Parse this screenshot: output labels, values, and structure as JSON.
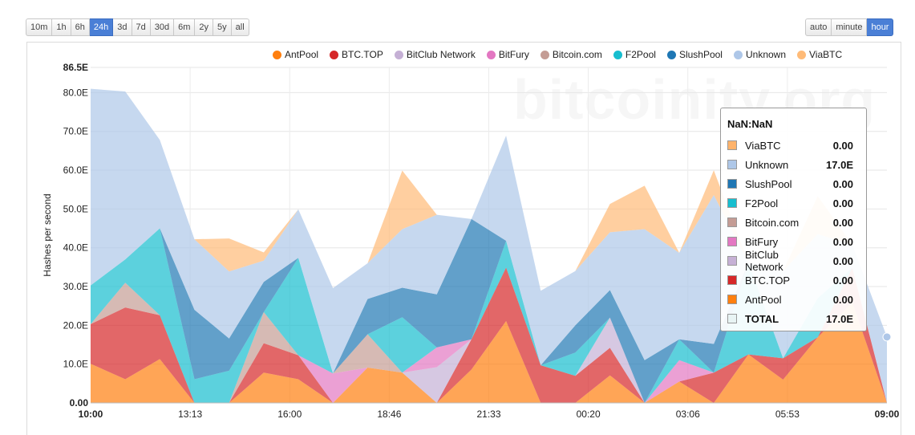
{
  "range_buttons": [
    {
      "label": "10m"
    },
    {
      "label": "1h"
    },
    {
      "label": "6h"
    },
    {
      "label": "24h"
    },
    {
      "label": "3d"
    },
    {
      "label": "7d"
    },
    {
      "label": "30d"
    },
    {
      "label": "6m"
    },
    {
      "label": "2y"
    },
    {
      "label": "5y"
    },
    {
      "label": "all"
    }
  ],
  "active_range": "24h",
  "interval_buttons": [
    {
      "label": "auto"
    },
    {
      "label": "minute"
    },
    {
      "label": "hour"
    }
  ],
  "active_interval": "hour",
  "watermark": "bitcoinity.org",
  "tooltip": {
    "title": "NaN:NaN",
    "rows": [
      {
        "name": "ViaBTC",
        "value": "0.00",
        "color": "#ffb36b"
      },
      {
        "name": "Unknown",
        "value": "17.0E",
        "color": "#aec7e8"
      },
      {
        "name": "SlushPool",
        "value": "0.00",
        "color": "#1f77b4"
      },
      {
        "name": "F2Pool",
        "value": "0.00",
        "color": "#17becf"
      },
      {
        "name": "Bitcoin.com",
        "value": "0.00",
        "color": "#c49c94"
      },
      {
        "name": "BitFury",
        "value": "0.00",
        "color": "#e377c2"
      },
      {
        "name": "BitClub Network",
        "value": "0.00",
        "color": "#c5b0d5"
      },
      {
        "name": "BTC.TOP",
        "value": "0.00",
        "color": "#d62728"
      },
      {
        "name": "AntPool",
        "value": "0.00",
        "color": "#ff7f0e"
      },
      {
        "name": "TOTAL",
        "value": "17.0E",
        "color": "#e8f4f4"
      }
    ]
  },
  "chart_data": {
    "type": "area",
    "stacked": true,
    "ylabel": "Hashes per second",
    "ylim": [
      0,
      86.5
    ],
    "ytick_labels": [
      "0.00",
      "10.0E",
      "20.0E",
      "30.0E",
      "40.0E",
      "50.0E",
      "60.0E",
      "70.0E",
      "80.0E",
      "86.5E"
    ],
    "ytick_values": [
      0,
      10,
      20,
      30,
      40,
      50,
      60,
      70,
      80,
      86.5
    ],
    "xtick_labels": [
      "10:00",
      "13:13",
      "16:00",
      "18:46",
      "21:33",
      "00:20",
      "03:06",
      "05:53",
      "09:00"
    ],
    "x": [
      "10:00",
      "11:00",
      "12:00",
      "13:00",
      "14:00",
      "15:00",
      "16:00",
      "17:00",
      "18:00",
      "19:00",
      "20:00",
      "21:00",
      "22:00",
      "23:00",
      "00:00",
      "01:00",
      "02:00",
      "03:00",
      "04:00",
      "05:00",
      "06:00",
      "07:00",
      "08:00",
      "09:00"
    ],
    "grid": true,
    "legend": "top",
    "series": [
      {
        "name": "AntPool",
        "color": "#ff7f0e",
        "values": [
          10.1,
          6.1,
          11.3,
          0,
          0,
          7.8,
          6.1,
          0,
          9.1,
          7.8,
          0,
          8.6,
          21.1,
          0,
          0,
          7.1,
          0,
          5.5,
          0,
          12.5,
          6.0,
          16.9,
          25.9,
          0
        ]
      },
      {
        "name": "BTC.TOP",
        "color": "#d62728",
        "values": [
          10.2,
          18.5,
          11.3,
          0,
          0,
          7.6,
          6.2,
          0,
          0,
          0,
          0,
          7.8,
          13.8,
          9.7,
          7.0,
          7.1,
          0,
          0,
          7.8,
          0,
          5.5,
          0,
          8.9,
          0
        ]
      },
      {
        "name": "BitClub Network",
        "color": "#c5b0d5",
        "values": [
          0,
          0,
          0,
          0,
          0,
          0,
          0,
          0,
          0,
          0,
          9.2,
          0,
          0,
          0,
          0,
          7.8,
          0,
          0,
          0,
          0,
          0,
          0,
          0,
          0
        ]
      },
      {
        "name": "BitFury",
        "color": "#e377c2",
        "values": [
          0,
          0,
          0,
          0,
          0,
          0,
          0,
          7.6,
          0,
          0,
          5.1,
          0,
          0,
          0,
          0,
          0,
          0,
          5.5,
          0,
          0,
          0,
          0,
          0,
          0
        ]
      },
      {
        "name": "Bitcoin.com",
        "color": "#c49c94",
        "values": [
          0,
          6.4,
          0,
          0,
          0,
          8.0,
          0,
          0,
          8.6,
          0,
          0,
          0,
          0,
          0,
          0,
          0,
          0,
          0,
          0,
          0,
          0,
          0,
          0,
          0
        ]
      },
      {
        "name": "F2Pool",
        "color": "#17becf",
        "values": [
          10.0,
          6.0,
          22.4,
          6.1,
          8.3,
          0,
          25.1,
          0,
          0,
          14.3,
          0,
          0,
          6.9,
          0,
          6.0,
          0,
          0,
          5.4,
          0,
          23.7,
          0,
          10.1,
          0,
          0
        ]
      },
      {
        "name": "SlushPool",
        "color": "#1f77b4",
        "values": [
          0,
          0,
          0,
          17.9,
          8.3,
          7.8,
          0,
          0,
          9.1,
          7.6,
          13.7,
          31.0,
          0,
          0,
          7.0,
          7.1,
          11.0,
          0,
          7.4,
          0,
          0,
          0,
          0,
          0
        ]
      },
      {
        "name": "Unknown",
        "color": "#aec7e8",
        "values": [
          50.7,
          43.3,
          22.8,
          18.2,
          17.3,
          5.5,
          12.5,
          22.0,
          9.2,
          15.1,
          20.5,
          0,
          27.1,
          19.2,
          14.0,
          14.9,
          33.8,
          22.3,
          38.4,
          0,
          22.5,
          16.5,
          6.0,
          17.0
        ]
      },
      {
        "name": "ViaBTC",
        "color": "#ffbb78",
        "values": [
          0,
          0,
          0,
          0,
          8.5,
          2.1,
          0,
          0,
          0,
          15.1,
          0,
          0,
          0,
          0,
          0,
          7.3,
          11.2,
          0,
          6.4,
          0,
          0,
          9.8,
          0,
          0
        ]
      }
    ]
  }
}
